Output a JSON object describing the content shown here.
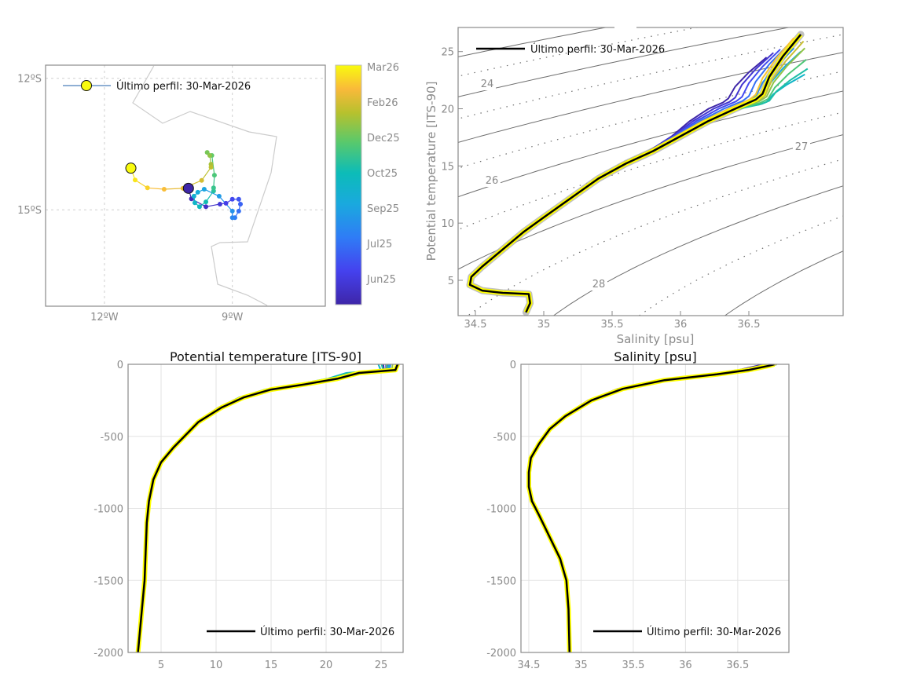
{
  "colors": {
    "last_profile": "#000000",
    "last_outline": "#ffff00",
    "historic_ts": "#b0b0b0",
    "contour": "#6e6e6e"
  },
  "chart_data": [
    {
      "type": "scatter",
      "name": "trajectory-map",
      "title": "",
      "xlabel": "",
      "ylabel": "",
      "xlim": [
        -13.38,
        -6.82
      ],
      "ylim": [
        -17.2,
        -11.7
      ],
      "x_ticks": [
        {
          "v": -12,
          "label": "12ºW"
        },
        {
          "v": -9,
          "label": "9ºW"
        }
      ],
      "y_ticks": [
        {
          "v": -12,
          "label": "12ºS"
        },
        {
          "v": -15,
          "label": "15ºS"
        }
      ],
      "grid": "dotted",
      "legend": {
        "label": "Último perfil: 30-Mar-2026",
        "placement": "top-left"
      },
      "track": [
        [
          -10.03,
          -14.51
        ],
        [
          -9.96,
          -14.75
        ],
        [
          -9.62,
          -14.93
        ],
        [
          -9.29,
          -14.87
        ],
        [
          -9.15,
          -14.85
        ],
        [
          -9.0,
          -14.76
        ],
        [
          -8.85,
          -14.76
        ],
        [
          -8.81,
          -14.87
        ],
        [
          -8.85,
          -15.03
        ],
        [
          -8.94,
          -15.18
        ],
        [
          -9.0,
          -15.18
        ],
        [
          -9.0,
          -15.03
        ],
        [
          -9.31,
          -14.69
        ],
        [
          -9.66,
          -14.53
        ],
        [
          -9.81,
          -14.6
        ],
        [
          -9.9,
          -14.69
        ],
        [
          -9.88,
          -14.84
        ],
        [
          -9.77,
          -14.93
        ],
        [
          -9.62,
          -14.82
        ],
        [
          -9.44,
          -14.57
        ],
        [
          -9.44,
          -14.5
        ],
        [
          -9.42,
          -14.21
        ],
        [
          -9.48,
          -13.76
        ],
        [
          -9.59,
          -13.69
        ],
        [
          -9.53,
          -13.76
        ],
        [
          -9.5,
          -13.96
        ],
        [
          -9.5,
          -14.03
        ],
        [
          -9.72,
          -14.33
        ],
        [
          -10.16,
          -14.51
        ],
        [
          -10.6,
          -14.53
        ],
        [
          -10.99,
          -14.5
        ],
        [
          -11.28,
          -14.32
        ],
        [
          -11.38,
          -14.05
        ]
      ],
      "colorbar": {
        "labels": [
          "Mar26",
          "Feb26",
          "Dec25",
          "Oct25",
          "Sep25",
          "Jul25",
          "Jun25"
        ]
      }
    },
    {
      "type": "line",
      "name": "ts-diagram",
      "title": "",
      "xlabel": "Salinity [psu]",
      "ylabel": "Potential temperature [ITS-90]",
      "xlim": [
        34.37,
        37.19
      ],
      "ylim": [
        1.9,
        27.1
      ],
      "x_ticks": [
        "34.5",
        "35",
        "35.5",
        "36",
        "36.5"
      ],
      "y_ticks": [
        "5",
        "10",
        "15",
        "20",
        "25"
      ],
      "density_contour_levels": [
        23,
        23.5,
        24,
        24.5,
        25,
        25.5,
        26,
        26.5,
        27,
        27.5,
        28,
        28.5,
        29
      ],
      "contour_labels": [
        "24",
        "26",
        "27",
        "28"
      ],
      "legend": {
        "label": "Último perfil: 30-Mar-2026",
        "placement": "top-left"
      },
      "last_profile": {
        "S": [
          34.87,
          34.9,
          34.89,
          34.7,
          34.55,
          34.46,
          34.47,
          34.55,
          34.7,
          34.85,
          35.0,
          35.2,
          35.4,
          35.6,
          35.8,
          36.0,
          36.2,
          36.4,
          36.55,
          36.6,
          36.65,
          36.75,
          36.88
        ],
        "T": [
          2.2,
          3.0,
          3.8,
          3.9,
          4.1,
          4.6,
          5.3,
          6.2,
          7.7,
          9.2,
          10.5,
          12.2,
          13.9,
          15.2,
          16.3,
          17.6,
          18.9,
          20.0,
          20.8,
          21.3,
          22.8,
          24.6,
          26.5
        ]
      }
    },
    {
      "type": "line",
      "name": "temperature-profile",
      "title": "Potential temperature [ITS-90]",
      "xlabel": "",
      "ylabel": "",
      "xlim": [
        2,
        27
      ],
      "ylim": [
        -2000,
        0
      ],
      "x_ticks": [
        "5",
        "10",
        "15",
        "20",
        "25"
      ],
      "y_ticks": [
        "0",
        "-500",
        "-1000",
        "-1500",
        "-2000"
      ],
      "legend": {
        "label": "Último perfil: 30-Mar-2026",
        "placement": "bottom-right"
      },
      "last_profile": {
        "value": [
          26.5,
          26.3,
          23,
          21,
          18,
          15,
          12.5,
          10.5,
          8.4,
          6.1,
          5,
          4.3,
          3.9,
          3.7,
          3.6,
          3.5,
          3.2,
          2.9
        ],
        "depth": [
          0,
          -40,
          -60,
          -100,
          -140,
          -175,
          -230,
          -300,
          -400,
          -580,
          -680,
          -800,
          -950,
          -1100,
          -1300,
          -1500,
          -1750,
          -2000
        ]
      }
    },
    {
      "type": "line",
      "name": "salinity-profile",
      "title": "Salinity [psu]",
      "xlabel": "",
      "ylabel": "",
      "xlim": [
        34.425,
        36.99
      ],
      "ylim": [
        -2000,
        0
      ],
      "x_ticks": [
        "34.5",
        "35",
        "35.5",
        "36",
        "36.5"
      ],
      "y_ticks": [
        "0",
        "-500",
        "-1000",
        "-1500",
        "-2000"
      ],
      "legend": {
        "label": "Último perfil: 30-Mar-2026",
        "placement": "bottom-right"
      },
      "last_profile": {
        "value": [
          36.85,
          36.8,
          36.6,
          36.3,
          35.8,
          35.4,
          35.1,
          34.85,
          34.7,
          34.6,
          34.52,
          34.5,
          34.5,
          34.53,
          34.6,
          34.7,
          34.8,
          34.86,
          34.88,
          34.89
        ],
        "depth": [
          0,
          -10,
          -40,
          -70,
          -110,
          -170,
          -250,
          -360,
          -450,
          -550,
          -650,
          -750,
          -850,
          -950,
          -1050,
          -1200,
          -1350,
          -1500,
          -1700,
          -2000
        ]
      }
    }
  ],
  "historic_profiles": [
    {
      "t": 0.0,
      "dS": -0.25,
      "dT": -2.0
    },
    {
      "t": 0.08,
      "dS": -0.2,
      "dT": -1.6
    },
    {
      "t": 0.16,
      "dS": -0.15,
      "dT": -1.3
    },
    {
      "t": 0.25,
      "dS": -0.1,
      "dT": -1.0
    },
    {
      "t": 0.33,
      "dS": -0.05,
      "dT": -1.2
    },
    {
      "t": 0.42,
      "dS": 0.0,
      "dT": -1.5
    },
    {
      "t": 0.5,
      "dS": 0.03,
      "dT": -3.5
    },
    {
      "t": 0.58,
      "dS": 0.05,
      "dT": -3.0
    },
    {
      "t": 0.66,
      "dS": 0.04,
      "dT": -2.2
    },
    {
      "t": 0.75,
      "dS": 0.03,
      "dT": -1.2
    },
    {
      "t": 0.83,
      "dS": 0.02,
      "dT": -0.6
    },
    {
      "t": 0.92,
      "dS": -0.05,
      "dT": -0.3
    }
  ]
}
